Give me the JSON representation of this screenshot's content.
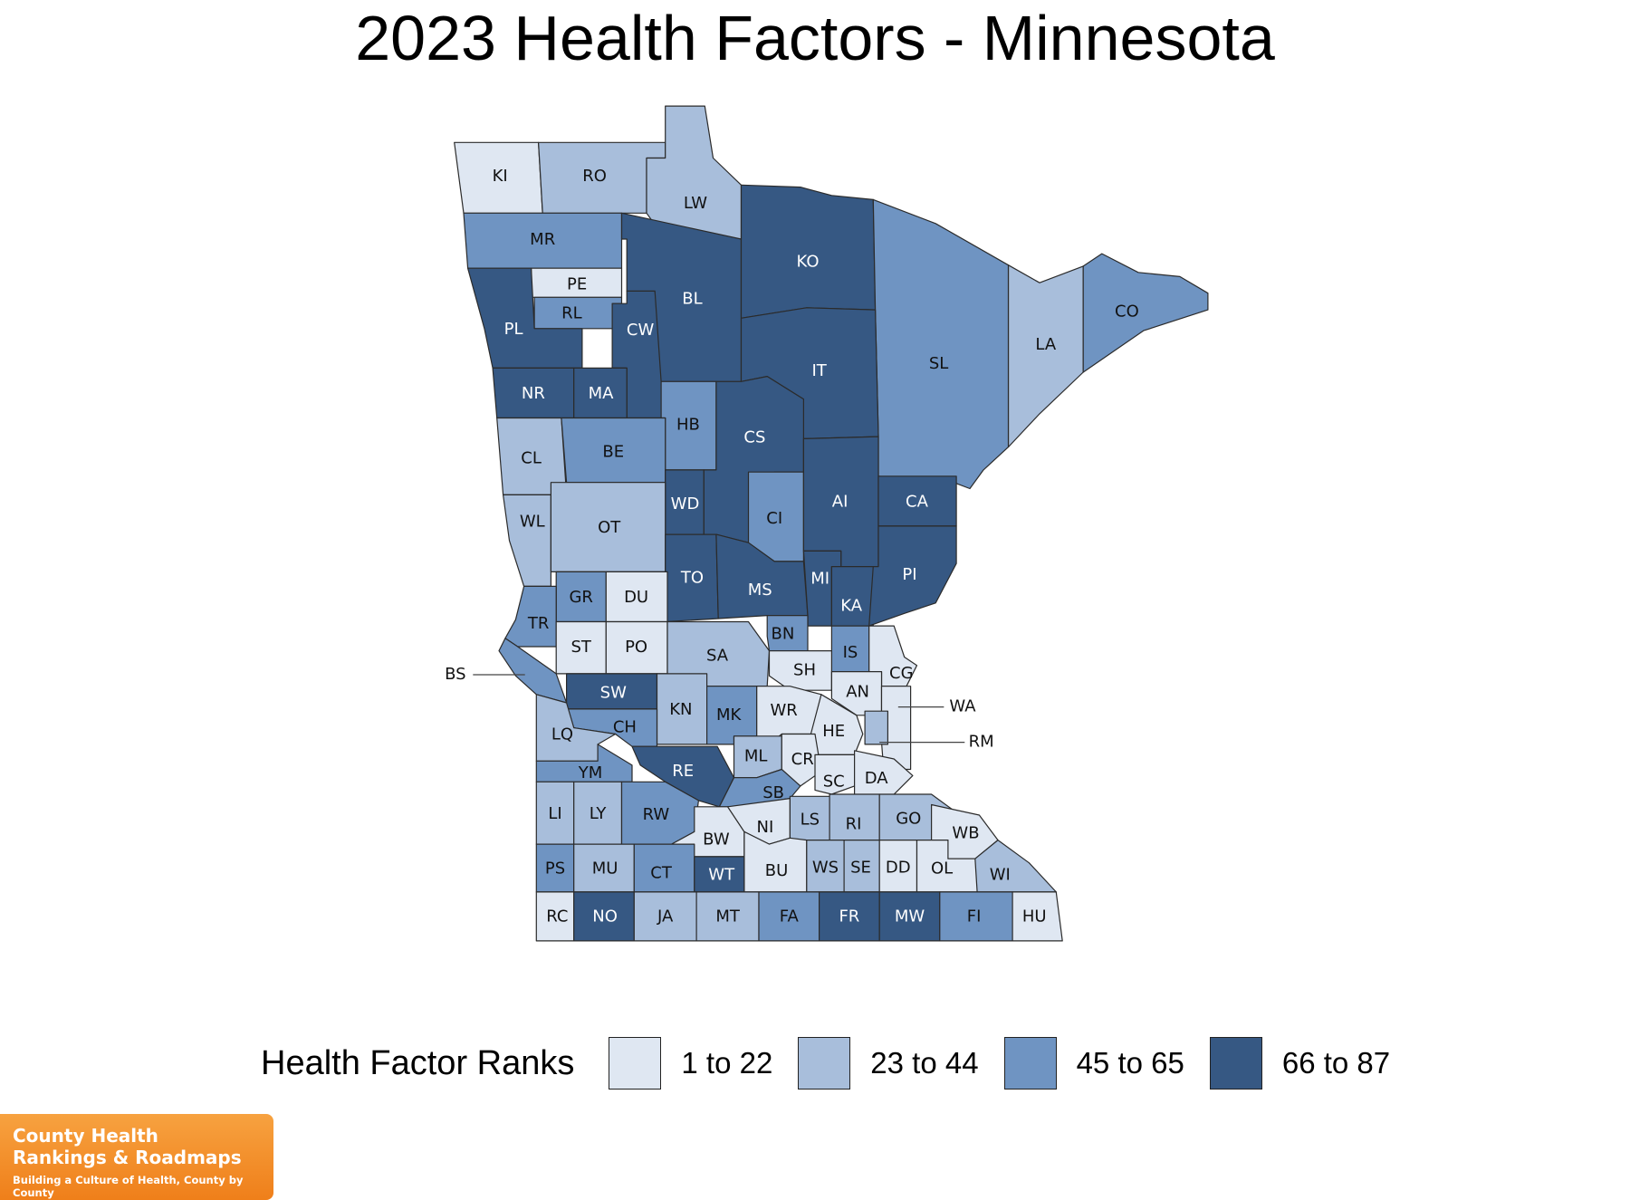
{
  "title": "2023 Health Factors - Minnesota",
  "legend": {
    "title": "Health Factor Ranks",
    "classes": [
      {
        "label": "1 to 22",
        "color": "#dfe7f2"
      },
      {
        "label": "23 to 44",
        "color": "#a8bedb"
      },
      {
        "label": "45 to 65",
        "color": "#6f94c2"
      },
      {
        "label": "66 to 87",
        "color": "#365883"
      }
    ]
  },
  "counties": [
    {
      "abbr": "KI",
      "cls": 0
    },
    {
      "abbr": "RO",
      "cls": 1
    },
    {
      "abbr": "LW",
      "cls": 1
    },
    {
      "abbr": "MR",
      "cls": 2
    },
    {
      "abbr": "PE",
      "cls": 0
    },
    {
      "abbr": "RL",
      "cls": 2
    },
    {
      "abbr": "PL",
      "cls": 3
    },
    {
      "abbr": "CW",
      "cls": 3
    },
    {
      "abbr": "BL",
      "cls": 3
    },
    {
      "abbr": "KO",
      "cls": 3
    },
    {
      "abbr": "LA",
      "cls": 1
    },
    {
      "abbr": "CO",
      "cls": 2
    },
    {
      "abbr": "SL",
      "cls": 2
    },
    {
      "abbr": "IT",
      "cls": 3
    },
    {
      "abbr": "NR",
      "cls": 3
    },
    {
      "abbr": "MA",
      "cls": 3
    },
    {
      "abbr": "HB",
      "cls": 2
    },
    {
      "abbr": "CL",
      "cls": 1
    },
    {
      "abbr": "BE",
      "cls": 2
    },
    {
      "abbr": "CS",
      "cls": 3
    },
    {
      "abbr": "WD",
      "cls": 3
    },
    {
      "abbr": "CI",
      "cls": 2
    },
    {
      "abbr": "AI",
      "cls": 3
    },
    {
      "abbr": "CA",
      "cls": 3
    },
    {
      "abbr": "WL",
      "cls": 1
    },
    {
      "abbr": "OT",
      "cls": 1
    },
    {
      "abbr": "TO",
      "cls": 3
    },
    {
      "abbr": "MS",
      "cls": 3
    },
    {
      "abbr": "MI",
      "cls": 3
    },
    {
      "abbr": "KA",
      "cls": 3
    },
    {
      "abbr": "PI",
      "cls": 3
    },
    {
      "abbr": "GR",
      "cls": 2
    },
    {
      "abbr": "DU",
      "cls": 0
    },
    {
      "abbr": "TR",
      "cls": 2
    },
    {
      "abbr": "ST",
      "cls": 0
    },
    {
      "abbr": "PO",
      "cls": 0
    },
    {
      "abbr": "SA",
      "cls": 1
    },
    {
      "abbr": "BN",
      "cls": 2
    },
    {
      "abbr": "IS",
      "cls": 2
    },
    {
      "abbr": "SH",
      "cls": 0
    },
    {
      "abbr": "CG",
      "cls": 0
    },
    {
      "abbr": "AN",
      "cls": 0
    },
    {
      "abbr": "BS",
      "cls": 2
    },
    {
      "abbr": "SW",
      "cls": 3
    },
    {
      "abbr": "KN",
      "cls": 1
    },
    {
      "abbr": "MK",
      "cls": 2
    },
    {
      "abbr": "WR",
      "cls": 0
    },
    {
      "abbr": "HE",
      "cls": 0
    },
    {
      "abbr": "WA",
      "cls": 0
    },
    {
      "abbr": "RM",
      "cls": 1
    },
    {
      "abbr": "CH",
      "cls": 2
    },
    {
      "abbr": "LQ",
      "cls": 1
    },
    {
      "abbr": "ML",
      "cls": 1
    },
    {
      "abbr": "CR",
      "cls": 0
    },
    {
      "abbr": "RE",
      "cls": 3
    },
    {
      "abbr": "YM",
      "cls": 2
    },
    {
      "abbr": "SC",
      "cls": 0
    },
    {
      "abbr": "DA",
      "cls": 0
    },
    {
      "abbr": "SB",
      "cls": 2
    },
    {
      "abbr": "LI",
      "cls": 1
    },
    {
      "abbr": "LY",
      "cls": 1
    },
    {
      "abbr": "RW",
      "cls": 2
    },
    {
      "abbr": "BW",
      "cls": 0
    },
    {
      "abbr": "NI",
      "cls": 0
    },
    {
      "abbr": "LS",
      "cls": 1
    },
    {
      "abbr": "RI",
      "cls": 1
    },
    {
      "abbr": "GO",
      "cls": 1
    },
    {
      "abbr": "WB",
      "cls": 0
    },
    {
      "abbr": "PS",
      "cls": 2
    },
    {
      "abbr": "MU",
      "cls": 1
    },
    {
      "abbr": "CT",
      "cls": 2
    },
    {
      "abbr": "WT",
      "cls": 3
    },
    {
      "abbr": "BU",
      "cls": 0
    },
    {
      "abbr": "WS",
      "cls": 1
    },
    {
      "abbr": "SE",
      "cls": 1
    },
    {
      "abbr": "DD",
      "cls": 0
    },
    {
      "abbr": "OL",
      "cls": 0
    },
    {
      "abbr": "WI",
      "cls": 1
    },
    {
      "abbr": "RC",
      "cls": 0
    },
    {
      "abbr": "NO",
      "cls": 3
    },
    {
      "abbr": "JA",
      "cls": 1
    },
    {
      "abbr": "MT",
      "cls": 1
    },
    {
      "abbr": "FA",
      "cls": 2
    },
    {
      "abbr": "FR",
      "cls": 3
    },
    {
      "abbr": "MW",
      "cls": 3
    },
    {
      "abbr": "FI",
      "cls": 2
    },
    {
      "abbr": "HU",
      "cls": 0
    }
  ],
  "logo": {
    "line1": "County Health",
    "line2": "Rankings & Roadmaps",
    "tagline": "Building a Culture of Health, County by County"
  }
}
